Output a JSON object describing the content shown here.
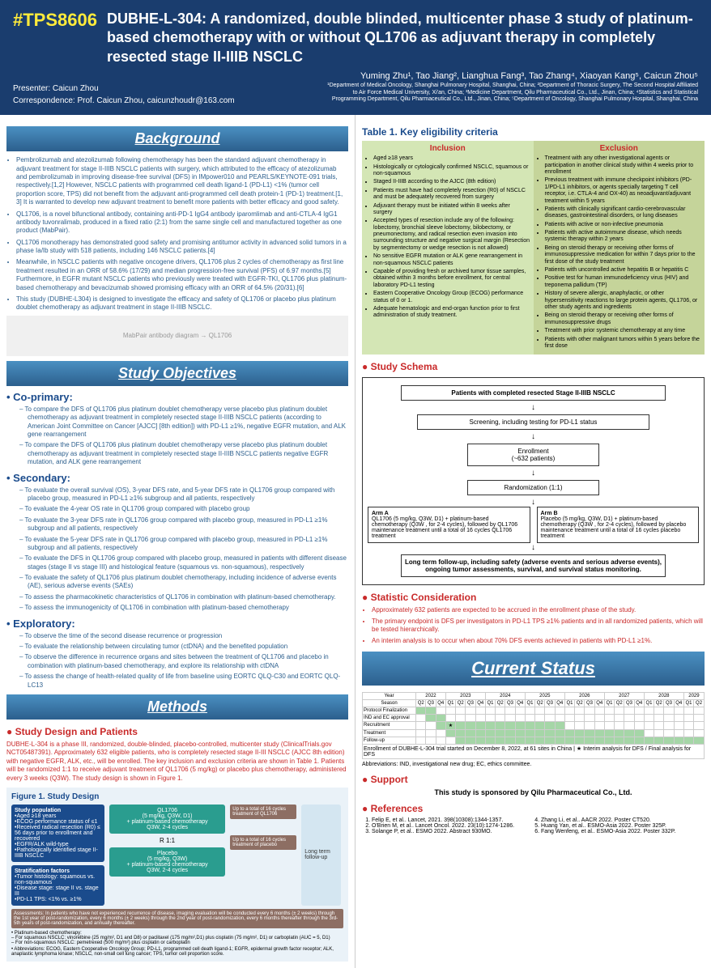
{
  "header": {
    "tag": "#TPS8606",
    "title": "DUBHE-L-304: A randomized, double blinded, multicenter phase 3 study of platinum-based chemotherapy with or without QL1706 as adjuvant therapy in completely resected stage II-IIIB NSCLC",
    "authors": "Yuming Zhu¹, Tao Jiang², Lianghua Fang³, Tao Zhang⁴, Xiaoyan Kang⁵, Caicun Zhou⁵",
    "presenter": "Presenter: Caicun Zhou",
    "correspondence": "Correspondence: Prof. Caicun Zhou, caicunzhoudr@163.com",
    "affiliations": "¹Department of Medical Oncology, Shanghai Pulmonary Hospital, Shanghai, China; ²Department of Thoracic Surgery, The Second Hospital Affiliated to Air Force Medical University, Xi'an, China; ³Medicine Department, Qilu Pharmaceutical Co., Ltd., Jinan, China; ⁴Statistics and Statistical Programming Department, Qilu Pharmaceutical Co., Ltd., Jinan, China; ⁵Department of Oncology, Shanghai Pulmonary Hospital, Shanghai, China"
  },
  "sections": {
    "background": "Background",
    "objectives": "Study Objectives",
    "methods": "Methods",
    "currentStatus": "Current Status"
  },
  "background": {
    "items": [
      "Pembrolizumab and atezolizumab following chemotherapy has been the standard adjuvant chemotherapy in adjuvant treatment for stage II-IIIB NSCLC patients with surgery, which attributed to the efficacy of atezolizumab and pembrolizumab in improving disease-free survival (DFS) in IMpower010 and PEARLS/KEYNOTE-091 trials, respectively.[1,2] However, NSCLC patients with programmed cell death ligand-1 (PD-L1) <1% (tumor cell proportion score, TPS) did not benefit from the adjuvant anti-programmed cell death protein-1 (PD-1) treatment.[1, 3] It is warranted to develop new adjuvant treatment to benefit more patients with better efficacy and good safety.",
      "QL1706, is a novel bifunctional antibody, containing anti-PD-1 IgG4 antibody iparomlimab and anti-CTLA-4 IgG1 antibody tuvonralimab, produced in a fixed ratio (2:1) from the same single cell and manufactured together as one product (MabPair).",
      "QL1706 monotherapy has demonstrated good safety and promising antitumor activity in advanced solid tumors in a phase Ia/Ib study with 518 patients, including 146 NSCLC patients.[4]",
      "Meanwhile, in NSCLC patients with negative oncogene drivers, QL1706 plus 2 cycles of chemotherapy as first line treatment resulted in an ORR of 58.6% (17/29) and median progression-free survival (PFS) of 6.97 months.[5] Furthermore, in EGFR mutant NSCLC patients who previously were treated with EGFR-TKI, QL1706 plus platinum-based chemotherapy and bevacizumab showed promising efficacy with an ORR of 64.5% (20/31).[6]",
      "This study (DUBHE-L304) is designed to investigate the efficacy and safety of QL1706 or placebo plus platinum doublet chemotherapy as adjuvant treatment in stage II-IIIB NSCLC."
    ]
  },
  "objectives": {
    "coprimary": "• Co-primary:",
    "coprimaryItems": [
      "To compare the DFS of QL1706 plus platinum doublet chemotherapy verse placebo plus platinum doublet chemotherapy as adjuvant treatment in completely resected stage II-IIIB NSCLC patients (according to American Joint Committee on Cancer [AJCC] [8th edition]) with PD-L1 ≥1%, negative EGFR mutation, and ALK gene rearrangement",
      "To compare the DFS of QL1706 plus platinum doublet chemotherapy verse placebo plus platinum doublet chemotherapy as adjuvant treatment in completely resected stage II-IIIB NSCLC patients negative EGFR mutation, and ALK gene rearrangement"
    ],
    "secondary": "• Secondary:",
    "secondaryItems": [
      "To evaluate the overall survival (OS), 3-year DFS rate, and 5-year DFS rate in QL1706 group compared with placebo group, measured in PD-L1 ≥1% subgroup and all patients, respectively",
      "To evaluate the 4-year OS rate in QL1706 group compared with placebo group",
      "To evaluate the 3-year DFS rate in QL1706 group compared with placebo group, measured in PD-L1 ≥1% subgroup and all patients, respectively",
      "To evaluate the 5-year DFS rate in QL1706 group compared with placebo group, measured in PD-L1 ≥1% subgroup and all patients, respectively",
      "To evaluate the DFS in QL1706 group compared with placebo group, measured in patients with different disease stages (stage II vs stage III) and histological feature (squamous vs. non-squamous), respectively",
      "To evaluate the safety of QL1706 plus platinum doublet chemotherapy, including incidence of adverse events (AE), serious adverse events (SAEs)",
      "To assess the pharmacokinetic characteristics of QL1706 in combination with platinum-based chemotherapy.",
      "To assess the immunogenicity of QL1706 in combination with platinum-based chemotherapy"
    ],
    "exploratory": "• Exploratory:",
    "exploratoryItems": [
      "To observe the time of the second disease recurrence or progression",
      "To evaluate the relationship between circulating tumor (ctDNA) and the benefited population",
      "To observe the difference in recurrence organs and sites between the treatment of QL1706 and placebo in combination with platinum-based chemotherapy, and explore its relationship with ctDNA",
      "To assess the change of health-related quality of life from baseline using EORTC QLQ-C30 and EORTC QLQ-LC13"
    ]
  },
  "methods": {
    "subtitle": "Study Design and Patients",
    "text": "DUBHE-L-304 is a phase III, randomized, double-blinded, placebo-controlled, multicenter study (ClinicalTrials.gov NCT05487391). Approximately 632 eligible patients, who is completely resected stage II-III NSCLC (AJCC 8th edition) with negative EGFR, ALK, etc., will be enrolled. The key inclusion and exclusion criteria are shown in Table 1. Patients will be randomized 1:1 to receive adjuvant treatment of QL1706 (5 mg/kg) or placebo plus chemotherapy, administered every 3 weeks (Q3W). The study design is shown in Figure 1.",
    "fig1Title": "Figure 1. Study Design",
    "studyPop": "Study population",
    "studyPopItems": "•Aged ≥18 years\n•ECOG performance status of ≤1\n•Received radical resection (R0) ≤ 56 days prior to enrollment and recovered\n•EGFR/ALK wild-type\n•Pathologically identified stage II-IIIB NSCLC",
    "strat": "Stratification factors",
    "stratItems": "•Tumor histology: squamous vs. non-squamous\n•Disease stage: stage II vs. stage III\n•PD-L1 TPS: <1% vs. ≥1%",
    "armA": "QL1706\n(5 mg/kg, Q3W, D1)\n+ platinum-based chemotherapy\nQ3W, 2-4 cycles",
    "armB": "Placebo\n(5 mg/kg, Q3W)\n+ platinum-based chemotherapy\nQ3W, 2-4 cycles",
    "maint1": "Up to a total of 16 cycles treatment of QL1706",
    "maint2": "Up to a total of 16 cycles treatment of placebo",
    "fu": "Long term follow-up",
    "assess": "Assessments: In patients who have not experienced recurrence of disease, imaging evaluation will be conducted every 6 months (± 2 weeks) through the 1st year of post-randomization, every 6 months (± 2 weeks) through the 2nd year of post-randomization, every 6 months thereafter through the 3rd-5th years of post-randomization, and annually thereafter.",
    "chemo": "• Platinum-based chemotherapy:\n   – For squamous NSCLC: vinorelbine (25 mg/m², D1 and D8) or paclitaxel (175 mg/m²,D1) plus cisplatin (75 mg/m², D1) or carboplatin (AUC = 5, D1)\n   – For non-squamous NSCLC: pemetrexed (500 mg/m²) plus cisplatin or carboplatin",
    "abbrev": "• Abbreviations: ECOG, Eastern Cooperative Oncology Group; PD-L1, programmed cell death ligand-1; EGFR, epidermal growth factor receptor; ALK, anaplastic lymphoma kinase; NSCLC, non-small cell lung cancer; TPS, tumor cell proportion score."
  },
  "table1": {
    "title": "Table 1. Key eligibility criteria",
    "incHdr": "Inclusion",
    "excHdr": "Exclusion",
    "inclusion": [
      "Aged ≥18 years",
      "Histologically or cytologically confirmed NSCLC, squamous or non-squamous",
      "Staged II-IIIB according to the AJCC (8th edition)",
      "Patients must have had completely resection (R0) of NSCLC and must be adequately recovered from surgery",
      "Adjuvant therapy must be initiated within 8 weeks after surgery",
      "Accepted types of resection include any of the following: lobectomy, bronchial sleeve lobectomy, bilobectomy, or pneumonectomy, and radical resection even invasion into surrounding structure and negative surgical margin (Resection by segmentectomy or wedge resection is not allowed)",
      "No sensitive EGFR mutation or ALK gene rearrangement in non-squamous NSCLC patients",
      "Capable of providing fresh or archived tumor tissue samples, obtained within 3 months before enrollment, for central laboratory PD-L1 testing",
      "Eastern Cooperative Oncology Group (ECOG) performance status of 0 or 1.",
      "Adequate hematologic and end-organ function prior to first administration of study treatment."
    ],
    "exclusion": [
      "Treatment with any other investigational agents or participation in another clinical study within 4 weeks prior to enrollment",
      "Previous treatment with immune checkpoint inhibitors (PD-1/PD-L1 inhibitors, or agents specially targeting T cell receptor, i.e. CTLA-4 and OX-40) as neoadjuvant/adjuvant treatment within 5 years",
      "Patients with clinically significant cardio-cerebrovascular diseases, gastrointestinal disorders, or lung diseases",
      "Patients with active or non-infective pneumonia",
      "Patients with active autoimmune disease, which needs systemic therapy within 2 years",
      "Being on steroid therapy or receiving other forms of immunosuppressive medication for within 7 days prior to the first dose of the study treatment",
      "Patients with uncontrolled active hepatitis B or hepatitis C",
      "Positive test for human immunodeficiency virus (HIV) and treponema pallidum (TP)",
      "History of severe allergic, anaphylactic, or other hypersensitivity reactions to large protein agents, QL1706, or other study agents and ingredients",
      "Being on steroid therapy or receiving other forms of immunosuppressive drugs",
      "Treatment with prior systemic chemotherapy at any time",
      "Patients with other malignant tumors within 5 years before the first dose"
    ]
  },
  "schema": {
    "title": "Study Schema",
    "box1": "Patients with completed resected Stage II-IIIB NSCLC",
    "box2": "Screening, including testing for PD-L1 status",
    "box3": "Enrollment\n(~632 patients)",
    "box4": "Randomization (1:1)",
    "armALabel": "Arm A",
    "armA": "QL1706 (5 mg/kg, Q3W, D1) + platinum-based chemotherapy (Q3W , for 2-4 cycles), followed by QL1706 maintenance treatment until a total of 16 cycles QL1706 treatment",
    "armBLabel": "Arm B",
    "armB": "Placebo (5 mg/kg, Q3W, D1) + platinum-based chemotherapy (Q3W , for 2-4 cycles), followed by placebo maintenance treatment until a total of 16 cycles placebo treatment",
    "bottom": "Long term follow-up, including safety (adverse events and serious adverse events), ongoing tumor assessments, survival, and survival status monitoring."
  },
  "statistics": {
    "title": "Statistic Consideration",
    "items": [
      "Approximately 632 patients are expected to be accrued in the enrollment phase of the study.",
      "The primary endpoint is DFS per investigators in PD-L1 TPS ≥1% patients and in all randomized patients, which will be tested hierarchically.",
      "An interim analysis is to occur when about 70% DFS events achieved in patients with PD-L1 ≥1%."
    ]
  },
  "gantt": {
    "years": [
      "2022",
      "2023",
      "2024",
      "2025",
      "2026",
      "2027",
      "2028",
      "2029"
    ],
    "seasons": [
      "Q2",
      "Q3",
      "Q4",
      "Q1",
      "Q2",
      "Q3",
      "Q4",
      "Q1",
      "Q2",
      "Q3",
      "Q4",
      "Q1",
      "Q2",
      "Q3",
      "Q4",
      "Q1",
      "Q2",
      "Q3",
      "Q4",
      "Q1",
      "Q2",
      "Q3",
      "Q4",
      "Q1",
      "Q2",
      "Q3",
      "Q4",
      "Q1",
      "Q2"
    ],
    "rows": [
      "Protocol Finalization",
      "IND and EC approval",
      "Recruitment",
      "Treatment",
      "Follow-up"
    ],
    "note": "Enrollment of DUBHE-L-304 trial started on December 8, 2022, at 61 sites in China",
    "interim": "Interim analysis for DFS",
    "final": "Final analysis for DFS",
    "abbrev": "Abbreviations: IND, investigational new drug; EC, ethics committee."
  },
  "support": {
    "title": "Support",
    "text": "This study is sponsored by Qilu Pharmaceutical Co., Ltd."
  },
  "references": {
    "title": "References",
    "items": [
      "Felip E, et al.. Lancet, 2021. 398(10308):1344-1357.",
      "O'Brien M, et al.. Lancet Oncol. 2022. 23(10):1274-1286.",
      "Solange P, et al.. ESMO 2022. Abstract 930MO.",
      "Zhang Li, et al.. AACR 2022. Poster CT520.",
      "Huang Yan, et al.. ESMO-Asia 2022. Poster 325P.",
      "Fang Wenfeng, et al.. ESMO-Asia 2022. Poster 332P."
    ]
  }
}
